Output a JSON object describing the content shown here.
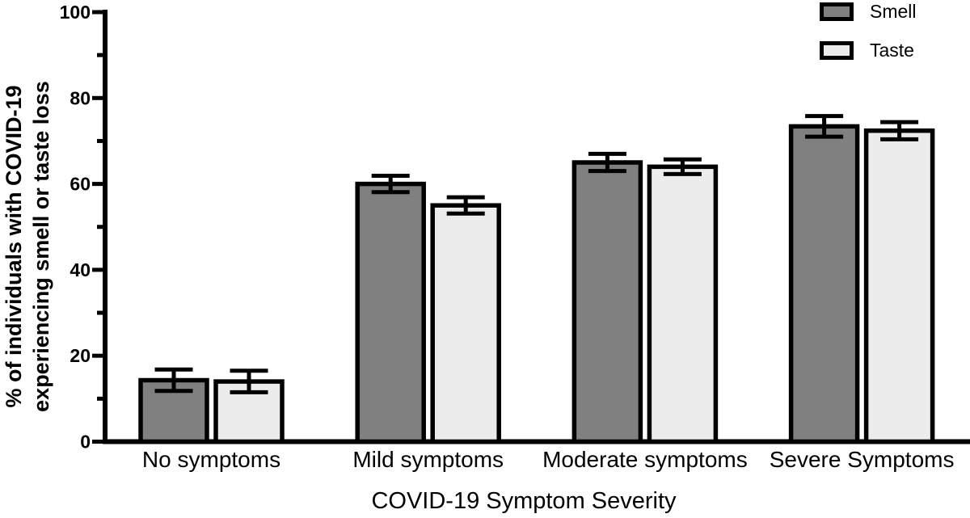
{
  "chart_data": {
    "type": "bar",
    "title": "",
    "xlabel": "COVID-19 Symptom Severity",
    "ylabel": "% of individuals with COVID-19 experiencing smell or taste loss",
    "ylabel_lines": [
      "% of individuals with COVID-19",
      "experiencing smell or taste loss"
    ],
    "categories": [
      "No symptoms",
      "Mild symptoms",
      "Moderate symptoms",
      "Severe Symptoms"
    ],
    "series": [
      {
        "name": "Smell",
        "color": "#808080",
        "values": [
          14.3,
          60.0,
          65.0,
          73.4
        ],
        "errors": [
          2.5,
          1.9,
          2.0,
          2.4
        ]
      },
      {
        "name": "Taste",
        "color": "#ECECEC",
        "values": [
          14.0,
          55.0,
          64.0,
          72.4
        ],
        "errors": [
          2.5,
          1.9,
          1.7,
          2.0
        ]
      }
    ],
    "ylim": [
      0,
      100
    ],
    "yticks_major": [
      0,
      20,
      40,
      60,
      80,
      100
    ],
    "yticks_minor": [
      10,
      30,
      50,
      70,
      90
    ],
    "legend_position": "top-right",
    "grid": false,
    "axis_color": "#000000",
    "bar_stroke_color": "#000000",
    "error_bar_color": "#000000"
  }
}
